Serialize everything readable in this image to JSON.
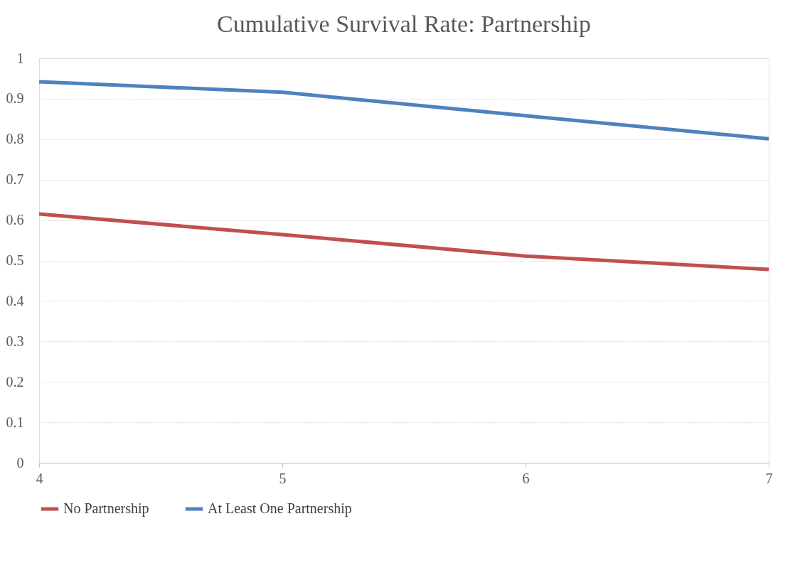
{
  "chart_data": {
    "type": "line",
    "title": "Cumulative Survival Rate: Partnership",
    "x": [
      4,
      5,
      6,
      7
    ],
    "series": [
      {
        "name": "No Partnership",
        "color": "#c0504d",
        "values": [
          0.615,
          0.564,
          0.511,
          0.478
        ]
      },
      {
        "name": "At Least One Partnership",
        "color": "#4f81bd",
        "values": [
          0.942,
          0.916,
          0.858,
          0.801
        ]
      }
    ],
    "xlim": [
      4,
      7
    ],
    "xticks": [
      4,
      5,
      6,
      7
    ],
    "ylim": [
      0,
      1
    ],
    "yticks": [
      0,
      0.1,
      0.2,
      0.3,
      0.4,
      0.5,
      0.6,
      0.7,
      0.8,
      0.9,
      1
    ],
    "grid": "y",
    "legend": "bottom",
    "marker": "none",
    "line_style": "solid"
  }
}
